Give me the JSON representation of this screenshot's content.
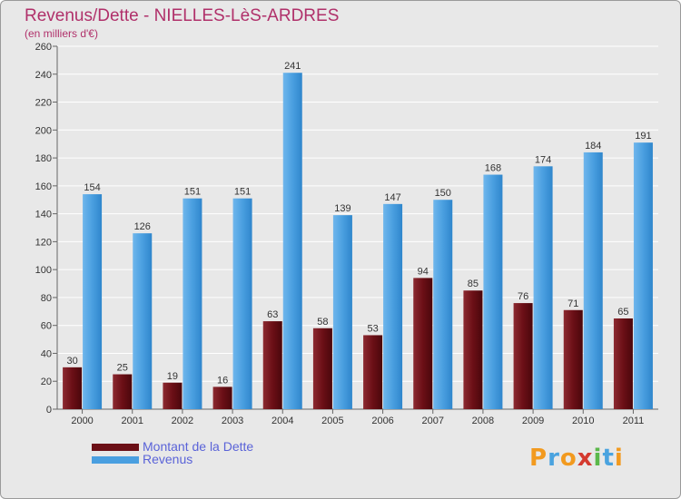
{
  "title": "Revenus/Dette - NIELLES-LèS-ARDRES",
  "subtitle": "(en milliers d'€)",
  "brand": {
    "name": "Proxiti",
    "letters": [
      {
        "ch": "P",
        "color": "#f29a1f"
      },
      {
        "ch": "r",
        "color": "#4aa3df"
      },
      {
        "ch": "o",
        "color": "#f29a1f"
      },
      {
        "ch": "x",
        "color": "#d43a2f"
      },
      {
        "ch": "i",
        "color": "#5bb84a"
      },
      {
        "ch": "t",
        "color": "#4aa3df"
      },
      {
        "ch": "i",
        "color": "#f29a1f"
      }
    ]
  },
  "chart_data": {
    "type": "bar",
    "title": "Revenus/Dette - NIELLES-LèS-ARDRES",
    "subtitle": "(en milliers d'€)",
    "categories": [
      "2000",
      "2001",
      "2002",
      "2003",
      "2004",
      "2005",
      "2006",
      "2007",
      "2008",
      "2009",
      "2010",
      "2011"
    ],
    "series": [
      {
        "name": "Montant de la Dette",
        "color": "#6b0f16",
        "values": [
          30,
          25,
          19,
          16,
          63,
          58,
          53,
          94,
          85,
          76,
          71,
          65
        ]
      },
      {
        "name": "Revenus",
        "color": "#4a9fe0",
        "values": [
          154,
          126,
          151,
          151,
          241,
          139,
          147,
          150,
          168,
          174,
          184,
          191
        ]
      }
    ],
    "ylim": [
      0,
      260
    ],
    "yticks": [
      0,
      20,
      40,
      60,
      80,
      100,
      120,
      140,
      160,
      180,
      200,
      220,
      240,
      260
    ],
    "grid": true,
    "legend_position": "bottom-left"
  }
}
